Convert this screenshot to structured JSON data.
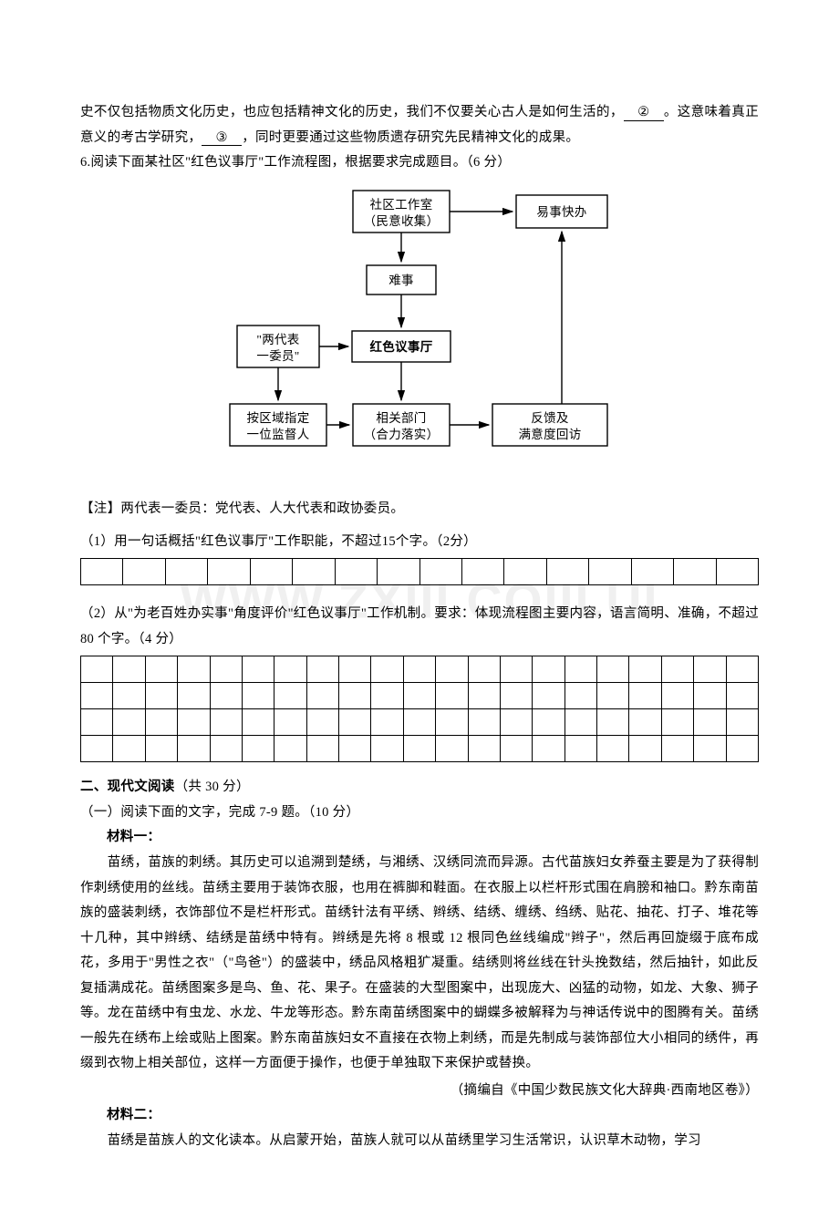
{
  "watermark": "WWW.ZXIII.COIII.UI",
  "intro": {
    "line1_pre": "史不仅包括物质文化历史，也应包括精神文化的历史，我们不仅要关心古人是如何生活的，",
    "blank2": "②",
    "line1_post": "。这意",
    "line2_pre": "味着真正意义的考古学研究，",
    "blank3": "③",
    "line2_post": "，同时更要通过这些物质遗存研究先民精神文化的成果。"
  },
  "q6": {
    "stem": "6.阅读下面某社区\"红色议事厅\"工作流程图，根据要求完成题目。（6 分）",
    "note": "【注】两代表一委员：党代表、人大代表和政协委员。",
    "sub1": "（1）用一句话概括\"红色议事厅\"工作职能，不超过15个字。（2分）",
    "sub2": "（2）从\"为老百姓办实事\"角度评价\"红色议事厅\"工作机制。要求：体现流程图主要内容，语言简明、准确，不超过 80 个字。（4 分）"
  },
  "chart": {
    "b1a": "社区工作室",
    "b1b": "（民意收集）",
    "b2": "易事快办",
    "b3": "难事",
    "b4a": "\"两代表",
    "b4b": "一委员\"",
    "b5": "红色议事厅",
    "b6a": "按区域指定",
    "b6b": "一位监督人",
    "b7a": "相关部门",
    "b7b": "（合力落实）",
    "b8a": "反馈及",
    "b8b": "满意度回访",
    "bg": "#ffffff",
    "stroke": "#000000"
  },
  "grid1": {
    "rows": 1,
    "cols": 16
  },
  "grid2": {
    "rows": 4,
    "cols": 21
  },
  "section2": {
    "title_bold": "二、现代文阅读",
    "title_rest": "（共 30 分）",
    "sub": "（一）阅读下面的文字，完成 7-9 题。（10 分）"
  },
  "m1": {
    "head": "材料一：",
    "p": "　　苗绣，苗族的刺绣。其历史可以追溯到楚绣，与湘绣、汉绣同流而异源。古代苗族妇女养蚕主要是为了获得制作刺绣使用的丝线。苗绣主要用于装饰衣服，也用在裤脚和鞋面。在衣服上以栏杆形式围在肩膀和袖口。黔东南苗族的盛装刺绣，衣饰部位不是栏杆形式。苗绣针法有平绣、辫绣、结绣、缠绣、绉绣、贴花、抽花、打子、堆花等十几种，其中辫绣、结绣是苗绣中特有。辫绣是先将 8 根或 12 根同色丝线编成\"辫子\"，然后再回旋缀于底布成花，多用于\"男性之衣\"（\"鸟爸\"）的盛装中，绣品风格粗犷凝重。结绣则将丝线在针头挽数结，然后抽针，如此反复插满成花。苗绣图案多是鸟、鱼、花、果子。在盛装的大型图案中，出现庞大、凶猛的动物，如龙、大象、狮子等。龙在苗绣中有虫龙、水龙、牛龙等形态。黔东南苗绣图案中的蝴蝶多被解释为与神话传说中的图腾有关。苗绣一般先在绣布上绘或贴上图案。黔东南苗族妇女不直接在衣物上刺绣，而是先制成与装饰部位大小相同的绣件，再缀到衣物上相关部位，这样一方面便于操作，也便于单独取下来保护或替换。",
    "src": "（摘编自《中国少数民族文化大辞典·西南地区卷》）"
  },
  "m2": {
    "head": "材料二：",
    "p": "　　苗绣是苗族人的文化读本。从启蒙开始，苗族人就可以从苗绣里学习生活常识，认识草木动物，学习"
  }
}
